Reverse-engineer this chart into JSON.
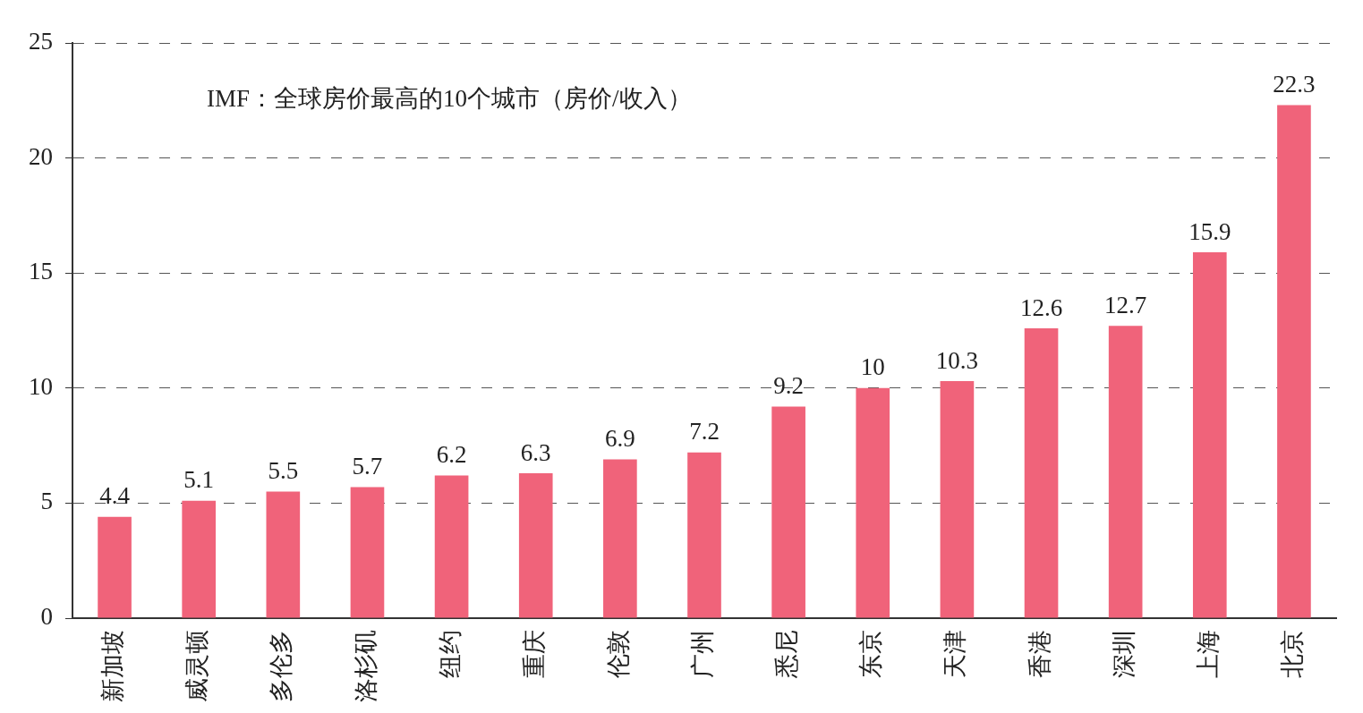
{
  "chart_data": {
    "type": "bar",
    "title": "IMF：全球房价最高的10个城市（房价/收入）",
    "categories": [
      "新加坡",
      "威灵顿",
      "多伦多",
      "洛杉矶",
      "纽约",
      "重庆",
      "伦敦",
      "广州",
      "悉尼",
      "东京",
      "天津",
      "香港",
      "深圳",
      "上海",
      "北京"
    ],
    "values": [
      4.4,
      5.1,
      5.5,
      5.7,
      6.2,
      6.3,
      6.9,
      7.2,
      9.2,
      10,
      10.3,
      12.6,
      12.7,
      15.9,
      22.3
    ],
    "color": "#f0637a",
    "ylim": [
      0,
      25
    ],
    "yticks": [
      0,
      5,
      10,
      15,
      20,
      25
    ],
    "grid": "y",
    "data_labels": true,
    "legend": false
  }
}
